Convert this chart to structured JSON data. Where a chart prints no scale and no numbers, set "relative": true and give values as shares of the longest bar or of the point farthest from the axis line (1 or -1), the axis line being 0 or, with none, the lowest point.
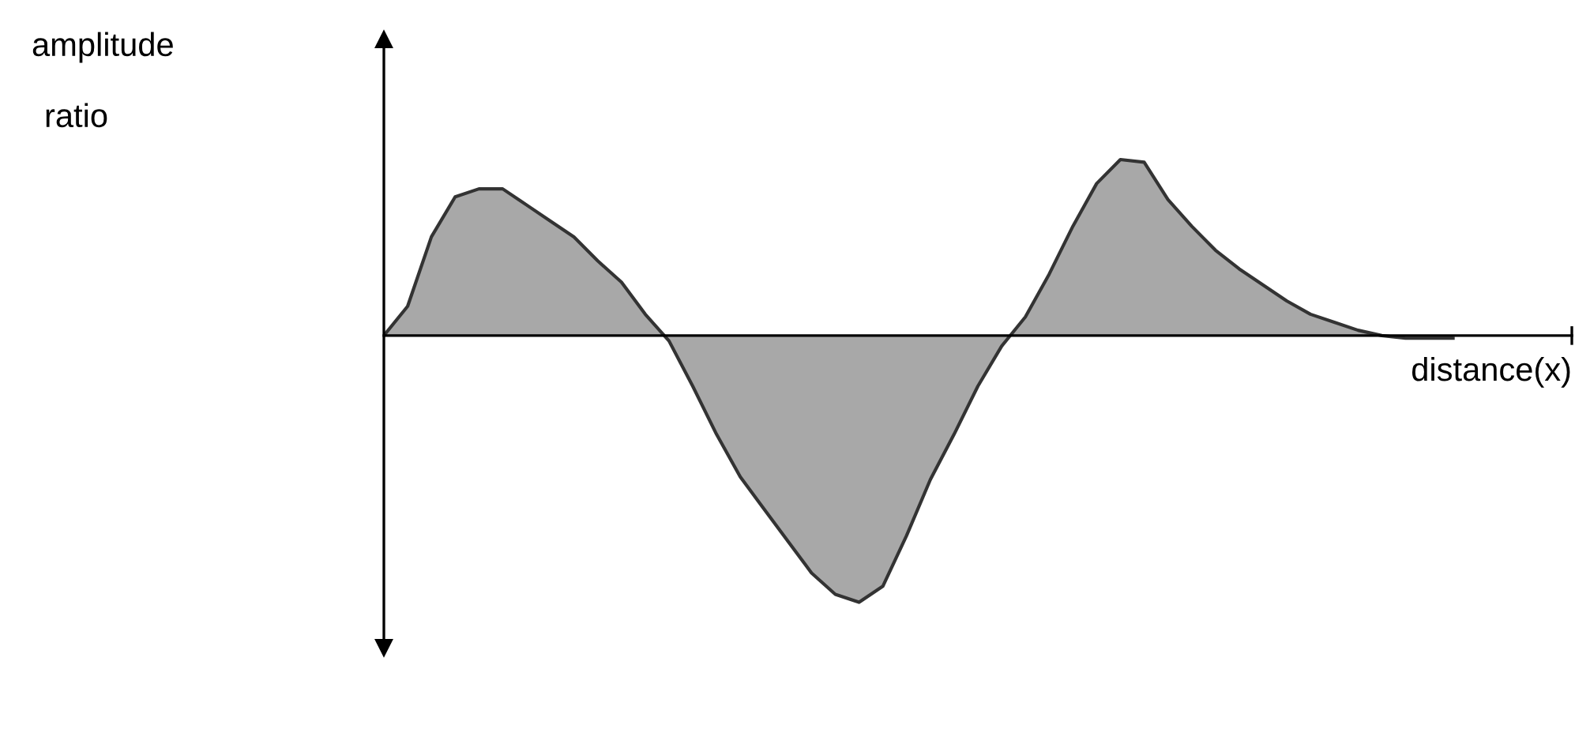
{
  "chart_data": {
    "type": "area",
    "relative": true,
    "ylabel": "amplitude ratio",
    "xlabel": "distance(x)",
    "categories": [
      null,
      null,
      null,
      null,
      null,
      null,
      null,
      null,
      null,
      null,
      null,
      null,
      null,
      null,
      null,
      null,
      null,
      null,
      null,
      null,
      null,
      null,
      null,
      null,
      null,
      null,
      null,
      null,
      null,
      null,
      null,
      null,
      null,
      null,
      null,
      null,
      null,
      null,
      null,
      null,
      null,
      null,
      null,
      null,
      null,
      null,
      null,
      null,
      null,
      null,
      null
    ],
    "series": [
      {
        "color": "#a8a8a8",
        "values": [
          0,
          0.11,
          0.37,
          0.52,
          0.55,
          0.55,
          0.49,
          0.43,
          0.37,
          0.28,
          0.2,
          0.08,
          -0.02,
          -0.19,
          -0.37,
          -0.53,
          -0.65,
          -0.77,
          -0.89,
          -0.97,
          -1.0,
          -0.94,
          -0.75,
          -0.54,
          -0.37,
          -0.19,
          -0.04,
          0.07,
          0.23,
          0.41,
          0.57,
          0.66,
          0.65,
          0.51,
          0.41,
          0.32,
          0.25,
          0.19,
          0.13,
          0.08,
          0.05,
          0.02,
          0,
          -0.01,
          -0.01,
          -0.01,
          null,
          null,
          null,
          null,
          null
        ]
      }
    ]
  }
}
